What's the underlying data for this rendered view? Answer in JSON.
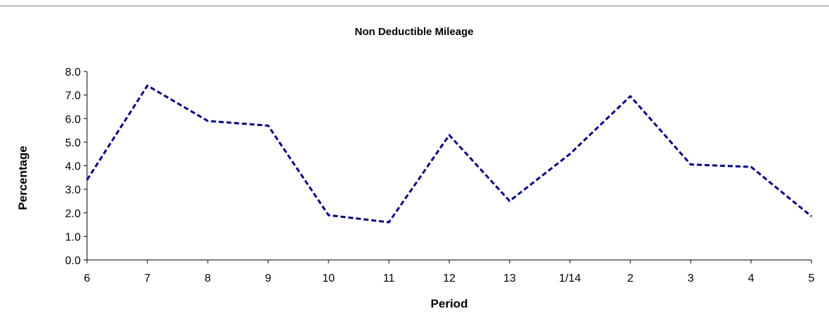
{
  "chart_data": {
    "type": "line",
    "title": "Non Deductible Mileage",
    "xlabel": "Period",
    "ylabel": "Percentage",
    "categories": [
      "6",
      "7",
      "8",
      "9",
      "10",
      "11",
      "12",
      "13",
      "1/14",
      "2",
      "3",
      "4",
      "5"
    ],
    "series": [
      {
        "values": [
          3.4,
          7.4,
          5.9,
          5.7,
          1.9,
          1.6,
          5.3,
          2.5,
          4.5,
          6.95,
          4.05,
          3.95,
          1.85
        ],
        "color": "#000080",
        "style": "dashed"
      }
    ],
    "ylim": [
      0,
      8
    ],
    "yticks": [
      "0.0",
      "1.0",
      "2.0",
      "3.0",
      "4.0",
      "5.0",
      "6.0",
      "7.0",
      "8.0"
    ],
    "grid": false,
    "legend": "none"
  }
}
